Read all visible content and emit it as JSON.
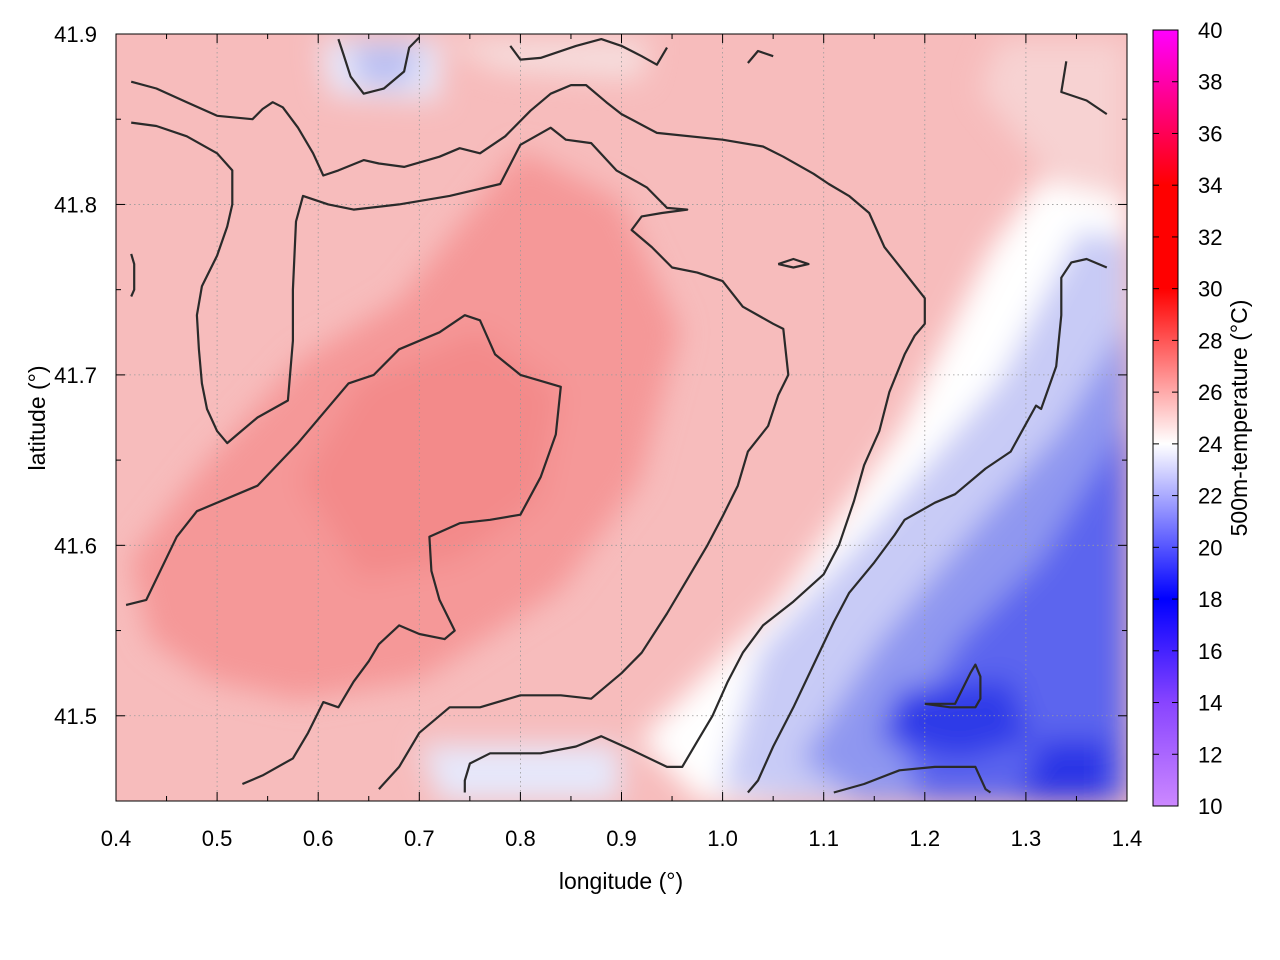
{
  "chart_data": {
    "type": "heatmap",
    "title": "",
    "xlabel": "longitude (°)",
    "ylabel": "latitude (°)",
    "colorbar_label": "500m-temperature (°C)",
    "xlim": [
      0.4,
      1.4
    ],
    "ylim": [
      41.45,
      41.9
    ],
    "x_ticks": [
      "0.4",
      "0.5",
      "0.6",
      "0.7",
      "0.8",
      "0.9",
      "1.0",
      "1.1",
      "1.2",
      "1.3",
      "1.4"
    ],
    "y_ticks": [
      "41.5",
      "41.6",
      "41.7",
      "41.8",
      "41.9"
    ],
    "colorbar_range": [
      10,
      40
    ],
    "colorbar_ticks": [
      "10",
      "12",
      "14",
      "16",
      "18",
      "20",
      "22",
      "24",
      "26",
      "28",
      "30",
      "32",
      "34",
      "36",
      "38",
      "40"
    ],
    "colormap": [
      {
        "value": 10,
        "color": "#cc88ff"
      },
      {
        "value": 14,
        "color": "#8844ff"
      },
      {
        "value": 18,
        "color": "#0000ff"
      },
      {
        "value": 24,
        "color": "#ffffff"
      },
      {
        "value": 30,
        "color": "#ff0000"
      },
      {
        "value": 34,
        "color": "#ff0000"
      },
      {
        "value": 40,
        "color": "#ff00ff"
      }
    ],
    "grid": true,
    "field_summary": {
      "warm_core_center": [
        0.75,
        41.66
      ],
      "warm_core_temp": 29,
      "background_temp": 27,
      "cold_region_center": [
        1.3,
        41.47
      ],
      "cold_region_temp": 17
    },
    "contours": [
      {
        "level": 28,
        "points": [
          [
            0.41,
            41.565
          ],
          [
            0.43,
            41.568
          ],
          [
            0.46,
            41.605
          ],
          [
            0.48,
            41.62
          ],
          [
            0.54,
            41.635
          ],
          [
            0.58,
            41.66
          ],
          [
            0.63,
            41.695
          ],
          [
            0.655,
            41.7
          ],
          [
            0.68,
            41.715
          ],
          [
            0.72,
            41.725
          ],
          [
            0.745,
            41.735
          ],
          [
            0.76,
            41.732
          ],
          [
            0.775,
            41.712
          ],
          [
            0.8,
            41.7
          ],
          [
            0.84,
            41.693
          ],
          [
            0.835,
            41.665
          ],
          [
            0.82,
            41.64
          ],
          [
            0.8,
            41.618
          ],
          [
            0.77,
            41.615
          ],
          [
            0.74,
            41.613
          ],
          [
            0.71,
            41.605
          ],
          [
            0.712,
            41.585
          ],
          [
            0.72,
            41.568
          ],
          [
            0.735,
            41.55
          ],
          [
            0.725,
            41.545
          ],
          [
            0.7,
            41.548
          ],
          [
            0.68,
            41.553
          ],
          [
            0.66,
            41.542
          ],
          [
            0.65,
            41.532
          ],
          [
            0.635,
            41.52
          ],
          [
            0.62,
            41.505
          ],
          [
            0.605,
            41.508
          ],
          [
            0.59,
            41.49
          ],
          [
            0.575,
            41.475
          ],
          [
            0.545,
            41.465
          ],
          [
            0.525,
            41.46
          ]
        ]
      },
      {
        "level": 27,
        "points": [
          [
            0.415,
            41.848
          ],
          [
            0.44,
            41.846
          ],
          [
            0.47,
            41.84
          ],
          [
            0.5,
            41.83
          ],
          [
            0.515,
            41.82
          ],
          [
            0.515,
            41.8
          ],
          [
            0.51,
            41.787
          ],
          [
            0.5,
            41.77
          ],
          [
            0.485,
            41.752
          ],
          [
            0.48,
            41.735
          ],
          [
            0.482,
            41.715
          ],
          [
            0.485,
            41.695
          ],
          [
            0.49,
            41.68
          ],
          [
            0.5,
            41.667
          ],
          [
            0.51,
            41.66
          ],
          [
            0.52,
            41.665
          ],
          [
            0.54,
            41.675
          ],
          [
            0.57,
            41.685
          ],
          [
            0.575,
            41.72
          ],
          [
            0.575,
            41.75
          ],
          [
            0.578,
            41.79
          ],
          [
            0.585,
            41.805
          ],
          [
            0.61,
            41.8
          ],
          [
            0.635,
            41.797
          ],
          [
            0.68,
            41.8
          ],
          [
            0.73,
            41.805
          ],
          [
            0.78,
            41.812
          ],
          [
            0.8,
            41.835
          ],
          [
            0.83,
            41.845
          ],
          [
            0.845,
            41.838
          ],
          [
            0.87,
            41.836
          ],
          [
            0.895,
            41.82
          ],
          [
            0.925,
            41.81
          ],
          [
            0.945,
            41.798
          ],
          [
            0.965,
            41.797
          ],
          [
            0.94,
            41.795
          ],
          [
            0.92,
            41.793
          ],
          [
            0.91,
            41.785
          ],
          [
            0.93,
            41.775
          ],
          [
            0.95,
            41.763
          ],
          [
            0.975,
            41.76
          ],
          [
            1.0,
            41.755
          ],
          [
            1.02,
            41.74
          ],
          [
            1.05,
            41.73
          ],
          [
            1.06,
            41.727
          ],
          [
            1.065,
            41.7
          ],
          [
            1.055,
            41.688
          ],
          [
            1.045,
            41.67
          ],
          [
            1.025,
            41.655
          ],
          [
            1.015,
            41.635
          ],
          [
            1.0,
            41.617
          ],
          [
            0.985,
            41.6
          ],
          [
            0.965,
            41.58
          ],
          [
            0.945,
            41.56
          ],
          [
            0.92,
            41.537
          ],
          [
            0.9,
            41.525
          ],
          [
            0.87,
            41.51
          ],
          [
            0.84,
            41.512
          ],
          [
            0.8,
            41.512
          ],
          [
            0.76,
            41.505
          ],
          [
            0.73,
            41.505
          ],
          [
            0.7,
            41.49
          ],
          [
            0.68,
            41.47
          ],
          [
            0.66,
            41.457
          ]
        ]
      },
      {
        "level": 26,
        "points": [
          [
            0.415,
            41.872
          ],
          [
            0.44,
            41.868
          ],
          [
            0.47,
            41.86
          ],
          [
            0.5,
            41.852
          ],
          [
            0.535,
            41.85
          ],
          [
            0.545,
            41.856
          ],
          [
            0.555,
            41.86
          ],
          [
            0.565,
            41.857
          ],
          [
            0.58,
            41.845
          ],
          [
            0.595,
            41.83
          ],
          [
            0.605,
            41.817
          ],
          [
            0.62,
            41.82
          ],
          [
            0.645,
            41.826
          ],
          [
            0.66,
            41.824
          ],
          [
            0.685,
            41.822
          ],
          [
            0.72,
            41.828
          ],
          [
            0.74,
            41.833
          ],
          [
            0.76,
            41.83
          ],
          [
            0.785,
            41.84
          ],
          [
            0.81,
            41.855
          ],
          [
            0.83,
            41.865
          ],
          [
            0.85,
            41.87
          ],
          [
            0.865,
            41.87
          ],
          [
            0.885,
            41.86
          ],
          [
            0.9,
            41.853
          ],
          [
            0.935,
            41.842
          ],
          [
            1.0,
            41.838
          ],
          [
            1.04,
            41.834
          ],
          [
            1.06,
            41.828
          ],
          [
            1.09,
            41.818
          ],
          [
            1.105,
            41.812
          ],
          [
            1.125,
            41.805
          ],
          [
            1.145,
            41.795
          ],
          [
            1.16,
            41.775
          ],
          [
            1.18,
            41.76
          ],
          [
            1.2,
            41.745
          ],
          [
            1.2,
            41.73
          ],
          [
            1.19,
            41.723
          ],
          [
            1.18,
            41.712
          ],
          [
            1.165,
            41.69
          ],
          [
            1.155,
            41.667
          ],
          [
            1.14,
            41.647
          ],
          [
            1.13,
            41.626
          ],
          [
            1.115,
            41.6
          ],
          [
            1.1,
            41.583
          ],
          [
            1.07,
            41.567
          ],
          [
            1.04,
            41.553
          ],
          [
            1.02,
            41.537
          ],
          [
            1.005,
            41.52
          ],
          [
            0.99,
            41.5
          ],
          [
            0.975,
            41.485
          ],
          [
            0.96,
            41.47
          ],
          [
            0.945,
            41.47
          ],
          [
            0.91,
            41.48
          ],
          [
            0.88,
            41.488
          ],
          [
            0.855,
            41.482
          ],
          [
            0.82,
            41.478
          ],
          [
            0.77,
            41.478
          ],
          [
            0.75,
            41.472
          ],
          [
            0.745,
            41.462
          ],
          [
            0.745,
            41.455
          ]
        ]
      },
      {
        "level": 24,
        "points": [
          [
            1.025,
            41.455
          ],
          [
            1.035,
            41.462
          ],
          [
            1.05,
            41.482
          ],
          [
            1.07,
            41.505
          ],
          [
            1.09,
            41.53
          ],
          [
            1.11,
            41.555
          ],
          [
            1.125,
            41.572
          ],
          [
            1.15,
            41.59
          ],
          [
            1.17,
            41.606
          ],
          [
            1.18,
            41.615
          ],
          [
            1.21,
            41.625
          ],
          [
            1.23,
            41.63
          ],
          [
            1.26,
            41.645
          ],
          [
            1.285,
            41.655
          ],
          [
            1.31,
            41.682
          ],
          [
            1.315,
            41.68
          ],
          [
            1.33,
            41.705
          ],
          [
            1.335,
            41.735
          ],
          [
            1.335,
            41.757
          ],
          [
            1.345,
            41.766
          ],
          [
            1.36,
            41.768
          ],
          [
            1.38,
            41.763
          ]
        ]
      },
      {
        "level": 22,
        "points": [
          [
            1.11,
            41.455
          ],
          [
            1.14,
            41.46
          ],
          [
            1.175,
            41.468
          ],
          [
            1.21,
            41.47
          ],
          [
            1.25,
            41.47
          ],
          [
            1.26,
            41.457
          ],
          [
            1.265,
            41.455
          ]
        ]
      },
      {
        "level": 20,
        "points": [
          [
            1.2,
            41.507
          ],
          [
            1.23,
            41.507
          ],
          [
            1.245,
            41.525
          ],
          [
            1.25,
            41.53
          ],
          [
            1.255,
            41.523
          ],
          [
            1.255,
            41.51
          ],
          [
            1.25,
            41.505
          ],
          [
            1.225,
            41.505
          ],
          [
            1.2,
            41.507
          ]
        ]
      },
      {
        "level": 25,
        "points": [
          [
            0.62,
            41.897
          ],
          [
            0.625,
            41.888
          ],
          [
            0.632,
            41.875
          ],
          [
            0.645,
            41.865
          ],
          [
            0.665,
            41.868
          ],
          [
            0.685,
            41.878
          ],
          [
            0.69,
            41.892
          ],
          [
            0.7,
            41.898
          ]
        ]
      },
      {
        "level": 25,
        "points": [
          [
            0.79,
            41.893
          ],
          [
            0.8,
            41.885
          ],
          [
            0.82,
            41.886
          ],
          [
            0.855,
            41.893
          ],
          [
            0.88,
            41.897
          ],
          [
            0.9,
            41.893
          ],
          [
            0.92,
            41.887
          ],
          [
            0.935,
            41.882
          ],
          [
            0.945,
            41.892
          ]
        ]
      },
      {
        "level": 25,
        "points": [
          [
            1.025,
            41.883
          ],
          [
            1.035,
            41.89
          ],
          [
            1.05,
            41.887
          ]
        ]
      },
      {
        "level": 25,
        "points": [
          [
            1.34,
            41.884
          ],
          [
            1.335,
            41.866
          ],
          [
            1.36,
            41.861
          ],
          [
            1.38,
            41.853
          ]
        ]
      },
      {
        "level": 27,
        "points": [
          [
            1.055,
            41.765
          ],
          [
            1.07,
            41.768
          ],
          [
            1.085,
            41.765
          ],
          [
            1.07,
            41.763
          ],
          [
            1.055,
            41.765
          ]
        ]
      },
      {
        "level": 27,
        "points": [
          [
            0.415,
            41.771
          ],
          [
            0.418,
            41.765
          ],
          [
            0.418,
            41.75
          ],
          [
            0.415,
            41.746
          ]
        ]
      }
    ]
  }
}
